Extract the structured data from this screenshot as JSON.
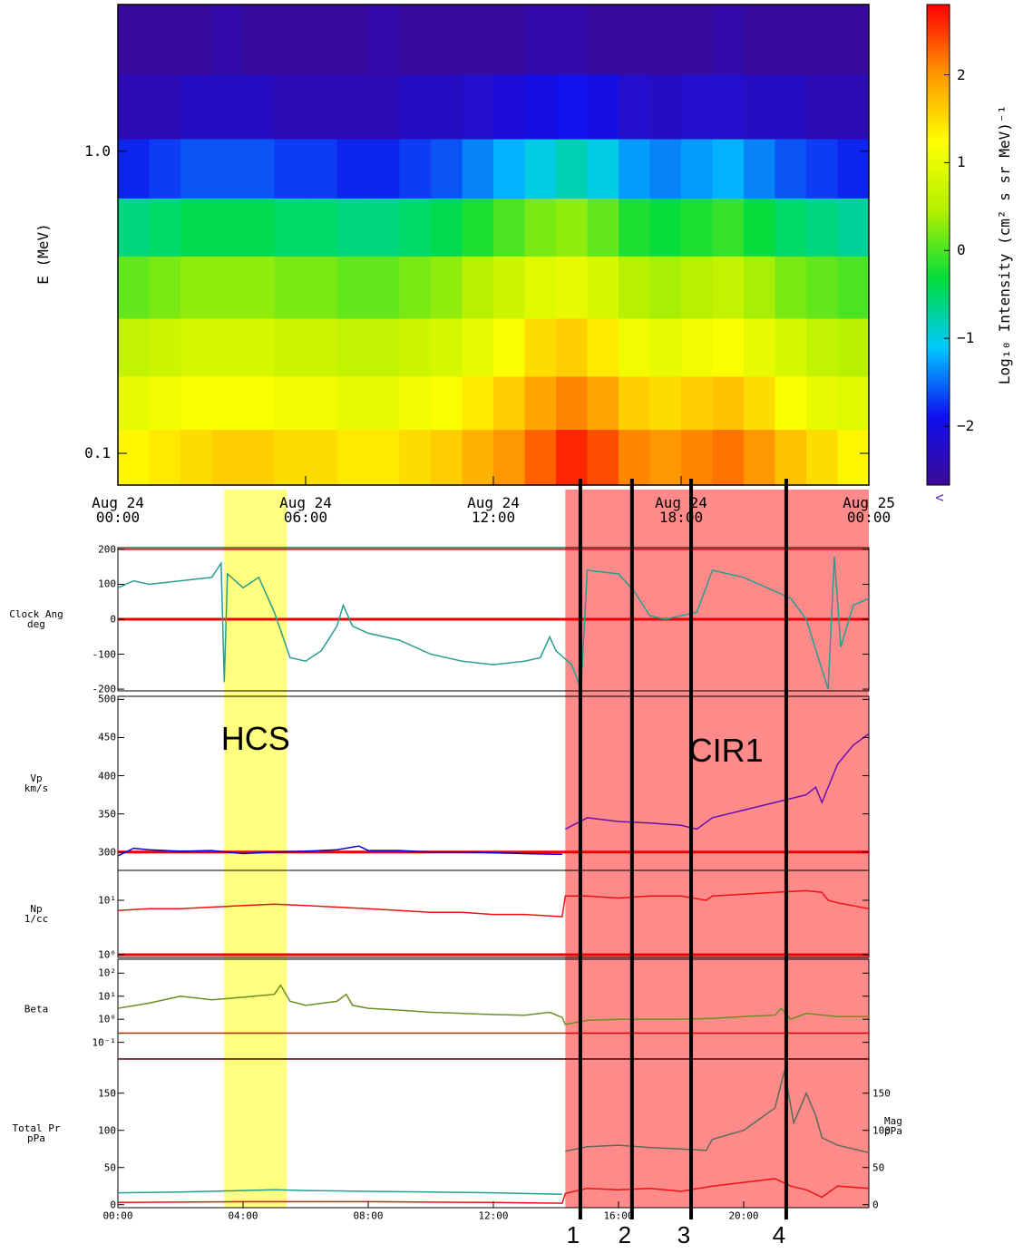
{
  "chart_data": [
    {
      "type": "heatmap",
      "ylabel": "E (MeV)",
      "log": true,
      "xlim": [
        0,
        24
      ],
      "ylim": [
        0.0785,
        3.06
      ],
      "xticks": [
        {
          "value": 0,
          "label": "Aug 24\n00:00"
        },
        {
          "value": 6,
          "label": "Aug 24\n06:00"
        },
        {
          "value": 12,
          "label": "Aug 24\n12:00"
        },
        {
          "value": 18,
          "label": "Aug 24\n18:00"
        },
        {
          "value": 24,
          "label": "Aug 25\n00:00"
        }
      ],
      "yticks": [
        {
          "value": 1,
          "label": "1.0"
        },
        0.1
      ],
      "colorbar_label": "Log₁₀ Intensity (cm² s sr MeV)⁻¹",
      "colorbar_note": "<",
      "zlim": [
        -2.67,
        2.8
      ],
      "zticks": [
        {
          "value": -2,
          "label": "−2"
        },
        {
          "value": -1,
          "label": "−1"
        },
        0,
        1,
        2
      ],
      "colormap": [
        "#3c0a96",
        "#1010f0",
        "#00c8ff",
        "#00dc3c",
        "#b4f000",
        "#ffff00",
        "#ff9600",
        "#ff0000"
      ],
      "x": [
        0,
        1,
        2,
        3,
        4,
        5,
        6,
        7,
        8,
        9,
        10,
        11,
        12,
        13,
        14,
        15,
        16,
        17,
        18,
        19,
        20,
        21,
        22,
        23,
        24
      ],
      "y": [
        0.0785,
        0.12,
        0.18,
        0.28,
        0.45,
        0.7,
        1.1,
        1.8,
        3.06
      ],
      "z": [
        [
          1.3,
          1.4,
          1.5,
          1.6,
          1.6,
          1.5,
          1.5,
          1.4,
          1.4,
          1.5,
          1.6,
          1.8,
          2.0,
          2.3,
          2.6,
          2.4,
          2.1,
          2.0,
          2.1,
          2.2,
          2.0,
          1.7,
          1.5,
          1.3
        ],
        [
          1.0,
          1.1,
          1.2,
          1.2,
          1.2,
          1.1,
          1.1,
          1.0,
          1.0,
          1.1,
          1.2,
          1.4,
          1.6,
          1.9,
          2.1,
          1.9,
          1.6,
          1.5,
          1.6,
          1.7,
          1.5,
          1.2,
          1.0,
          0.9
        ],
        [
          0.6,
          0.7,
          0.8,
          0.8,
          0.8,
          0.7,
          0.7,
          0.6,
          0.6,
          0.7,
          0.8,
          1.0,
          1.2,
          1.5,
          1.6,
          1.4,
          1.1,
          1.0,
          1.1,
          1.2,
          1.0,
          0.8,
          0.6,
          0.5
        ],
        [
          0.1,
          0.2,
          0.3,
          0.3,
          0.3,
          0.2,
          0.2,
          0.1,
          0.1,
          0.2,
          0.3,
          0.5,
          0.7,
          0.9,
          1.0,
          0.8,
          0.5,
          0.4,
          0.5,
          0.6,
          0.4,
          0.2,
          0.1,
          0.0
        ],
        [
          -0.6,
          -0.5,
          -0.4,
          -0.4,
          -0.4,
          -0.5,
          -0.5,
          -0.6,
          -0.6,
          -0.5,
          -0.4,
          -0.2,
          0.0,
          0.2,
          0.3,
          0.1,
          -0.2,
          -0.3,
          -0.2,
          -0.1,
          -0.3,
          -0.5,
          -0.6,
          -0.7
        ],
        [
          -1.8,
          -1.7,
          -1.6,
          -1.6,
          -1.6,
          -1.7,
          -1.7,
          -1.8,
          -1.8,
          -1.7,
          -1.6,
          -1.4,
          -1.2,
          -1.0,
          -0.8,
          -1.0,
          -1.3,
          -1.4,
          -1.3,
          -1.2,
          -1.4,
          -1.6,
          -1.7,
          -1.8
        ],
        [
          -2.4,
          -2.4,
          -2.3,
          -2.3,
          -2.3,
          -2.4,
          -2.4,
          -2.4,
          -2.4,
          -2.3,
          -2.3,
          -2.2,
          -2.1,
          -2.0,
          -1.9,
          -2.0,
          -2.2,
          -2.3,
          -2.2,
          -2.2,
          -2.3,
          -2.3,
          -2.4,
          -2.4
        ],
        [
          -2.6,
          -2.6,
          -2.6,
          -2.5,
          -2.6,
          -2.6,
          -2.6,
          -2.6,
          -2.5,
          -2.6,
          -2.6,
          -2.6,
          -2.6,
          -2.5,
          -2.5,
          -2.6,
          -2.6,
          -2.6,
          -2.6,
          -2.5,
          -2.6,
          -2.6,
          -2.6,
          -2.6
        ]
      ]
    },
    {
      "type": "line",
      "ylabel": "Clock Ang\ndeg",
      "xlim": [
        0,
        24
      ],
      "ylim": [
        -205,
        205
      ],
      "yticks": [
        -200,
        -100,
        0,
        100,
        200
      ],
      "hlines": [
        0,
        200
      ],
      "series": [
        {
          "color": "#2a9d8f",
          "x": [
            0,
            0.5,
            1,
            2,
            3,
            3.3,
            3.4,
            3.5,
            4,
            4.5,
            5,
            5.5,
            6,
            6.5,
            7,
            7.2,
            7.5,
            8,
            9,
            10,
            11,
            12,
            13,
            13.5,
            13.8,
            14,
            14.5,
            14.8,
            15,
            16,
            16.5,
            17,
            17.5,
            18,
            18.5,
            19,
            20,
            21,
            21.5,
            22,
            22.7,
            22.9,
            23.1,
            23.5,
            24
          ],
          "values": [
            90,
            110,
            100,
            110,
            120,
            160,
            -180,
            130,
            90,
            120,
            20,
            -110,
            -120,
            -90,
            -20,
            40,
            -20,
            -40,
            -60,
            -100,
            -120,
            -130,
            -120,
            -110,
            -50,
            -90,
            -130,
            -200,
            140,
            130,
            80,
            10,
            0,
            10,
            20,
            140,
            120,
            80,
            60,
            0,
            -200,
            180,
            -80,
            40,
            60
          ]
        }
      ]
    },
    {
      "type": "line",
      "ylabel": "Vp\nkm/s",
      "xlim": [
        0,
        24
      ],
      "ylim": [
        276,
        504
      ],
      "yticks": [
        300,
        350,
        400,
        450,
        500
      ],
      "hlines": [
        300
      ],
      "series": [
        {
          "color": "#0000e0",
          "x": [
            0,
            0.5,
            1,
            2,
            3,
            4,
            5,
            6,
            7,
            7.7,
            8,
            9,
            10,
            11,
            12,
            13,
            14,
            14.2
          ],
          "values": [
            295,
            305,
            303,
            301,
            302,
            298,
            300,
            301,
            303,
            308,
            302,
            302,
            300,
            300,
            299,
            298,
            297,
            297
          ]
        },
        {
          "color": "#6a0dad",
          "x": [
            14.3,
            15,
            16,
            17,
            18,
            18.5,
            19,
            20,
            21,
            22,
            22.3,
            22.5,
            23,
            23.5,
            24
          ],
          "values": [
            330,
            345,
            340,
            338,
            335,
            330,
            345,
            355,
            365,
            375,
            385,
            365,
            415,
            440,
            455
          ]
        }
      ]
    },
    {
      "type": "line",
      "ylabel": "Np\n1/cc",
      "log": true,
      "xlim": [
        0,
        24
      ],
      "ylim": [
        0.89,
        35.5
      ],
      "yticks": [
        {
          "value": 10,
          "label": "10¹"
        },
        {
          "value": 1,
          "label": "10⁰"
        }
      ],
      "hlines": [
        1
      ],
      "series": [
        {
          "color": "#ee1111",
          "x": [
            0,
            1,
            2,
            3,
            4,
            5,
            6,
            7,
            8,
            9,
            10,
            11,
            12,
            13,
            14.2,
            14.3,
            15,
            16,
            17,
            18,
            18.8,
            19,
            20,
            21,
            22,
            22.5,
            22.7,
            23,
            24
          ],
          "values": [
            6.5,
            7,
            7,
            7.5,
            8,
            8.5,
            8,
            7.5,
            7,
            6.5,
            6,
            6,
            5.5,
            5.5,
            5,
            12,
            12,
            11,
            12,
            12,
            10,
            12,
            13,
            14,
            15,
            14,
            10,
            9,
            7
          ]
        }
      ]
    },
    {
      "type": "line",
      "ylabel": "Beta",
      "log": true,
      "xlim": [
        0,
        24
      ],
      "ylim": [
        0.019,
        400
      ],
      "yticks": [
        {
          "value": 100,
          "label": "10²"
        },
        {
          "value": 10,
          "label": "10¹"
        },
        {
          "value": 1,
          "label": "10⁰"
        },
        {
          "value": 0.1,
          "label": "10⁻¹"
        }
      ],
      "hlines": [
        0.25,
        0.019
      ],
      "series": [
        {
          "color": "#6b8e23",
          "x": [
            0,
            1,
            2,
            3,
            4,
            5,
            5.2,
            5.5,
            6,
            7,
            7.3,
            7.5,
            8,
            9,
            10,
            11,
            12,
            13,
            13.8,
            14.2,
            14.3,
            15,
            16,
            17,
            18,
            19,
            20,
            21,
            21.2,
            21.5,
            22,
            23,
            24
          ],
          "values": [
            3,
            5,
            10,
            7,
            9,
            12,
            30,
            6,
            4,
            6,
            12,
            4,
            3,
            2.5,
            2,
            1.8,
            1.6,
            1.5,
            2,
            1.2,
            0.6,
            0.9,
            1,
            1,
            1,
            1.1,
            1.3,
            1.5,
            3,
            1,
            1.8,
            1.3,
            1.3
          ]
        }
      ]
    },
    {
      "type": "line",
      "ylabel": "Total Pr\npPa",
      "y2label": "Mag\npPa",
      "xlim": [
        0,
        24
      ],
      "ylim": [
        -4,
        196
      ],
      "y2lim": [
        -4,
        196
      ],
      "yticks": [
        0,
        50,
        100,
        150
      ],
      "y2ticks": [
        0,
        50,
        100,
        150
      ],
      "xticks": [
        {
          "value": 0,
          "label": "00:00"
        },
        {
          "value": 4,
          "label": "04:00"
        },
        {
          "value": 8,
          "label": "08:00"
        },
        {
          "value": 12,
          "label": "12:00"
        },
        {
          "value": 16,
          "label": "16:00"
        },
        {
          "value": 20,
          "label": "20:00"
        }
      ],
      "series": [
        {
          "color": "#20a090",
          "x": [
            0,
            2,
            4,
            5,
            6,
            8,
            10,
            12,
            14.2
          ],
          "values": [
            16,
            17,
            19,
            20,
            19,
            18,
            17,
            16,
            14
          ]
        },
        {
          "color": "#5a6b5a",
          "x": [
            14.3,
            15,
            16,
            17,
            18,
            18.8,
            19,
            20,
            20.5,
            21,
            21.3,
            21.6,
            22,
            22.3,
            22.5,
            23,
            24
          ],
          "values": [
            72,
            78,
            80,
            77,
            75,
            73,
            88,
            100,
            115,
            130,
            180,
            110,
            150,
            120,
            90,
            80,
            70
          ]
        },
        {
          "color": "#ee1111",
          "axis": "y2",
          "x": [
            0,
            4,
            8,
            12,
            14.2,
            14.3,
            15,
            16,
            17,
            18,
            19,
            20,
            21,
            21.5,
            22,
            22.5,
            23,
            24
          ],
          "values": [
            3,
            4,
            4,
            3,
            2,
            15,
            22,
            20,
            22,
            18,
            25,
            30,
            35,
            25,
            20,
            10,
            25,
            22
          ]
        }
      ]
    }
  ],
  "annotations": {
    "regions": [
      {
        "label": "HCS",
        "start": 3.4,
        "end": 5.4,
        "color": "#ffff80"
      },
      {
        "label": "CIR1",
        "start": 14.3,
        "end": 24,
        "color": "#ff8a8a"
      }
    ],
    "markers": [
      {
        "label": "1",
        "x": 14.78
      },
      {
        "label": "2",
        "x": 16.43
      },
      {
        "label": "3",
        "x": 18.32
      },
      {
        "label": "4",
        "x": 21.36
      }
    ]
  }
}
